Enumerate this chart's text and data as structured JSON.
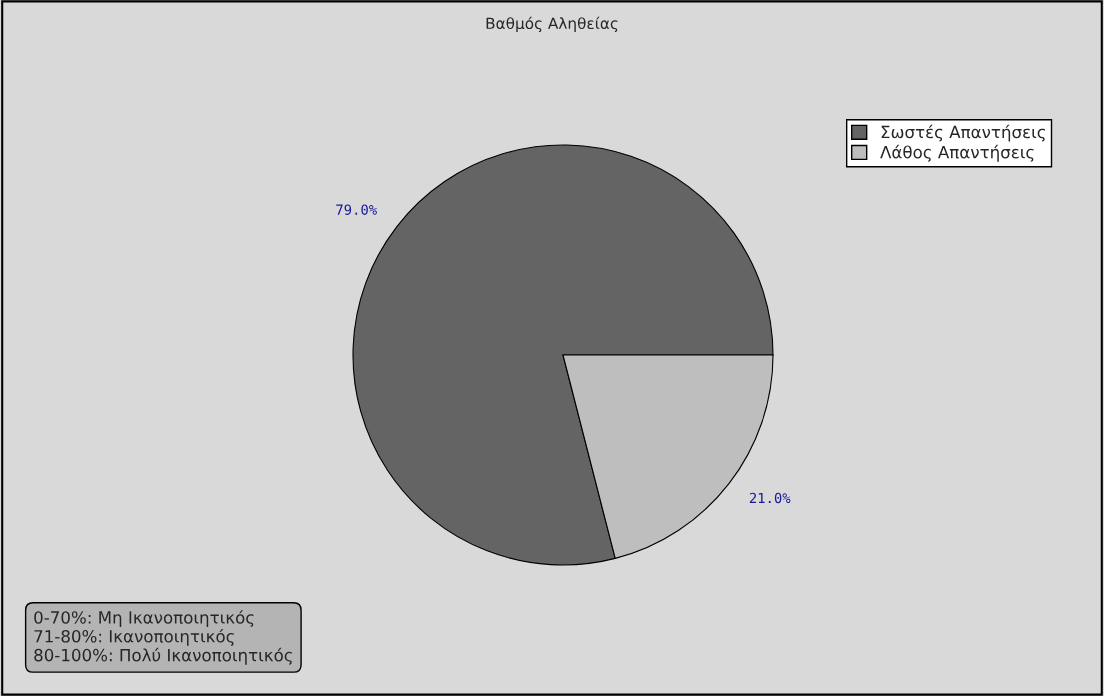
{
  "chart_data": {
    "type": "pie",
    "title": "Βαθμός Αληθείας",
    "categories": [
      "Σωστές Απαντήσεις",
      "Λάθος Απαντήσεις"
    ],
    "values": [
      79,
      21
    ],
    "colors": [
      "#646464",
      "#bebebe"
    ],
    "value_labels": [
      "79.0%",
      "21.0%"
    ],
    "legend": "top right",
    "annotations": [
      "0-70%: Μη Ικανοποιητικός",
      "71-80%: Ικανοποιητικός",
      "80-100%: Πολύ Ικανοποιητικός"
    ]
  }
}
